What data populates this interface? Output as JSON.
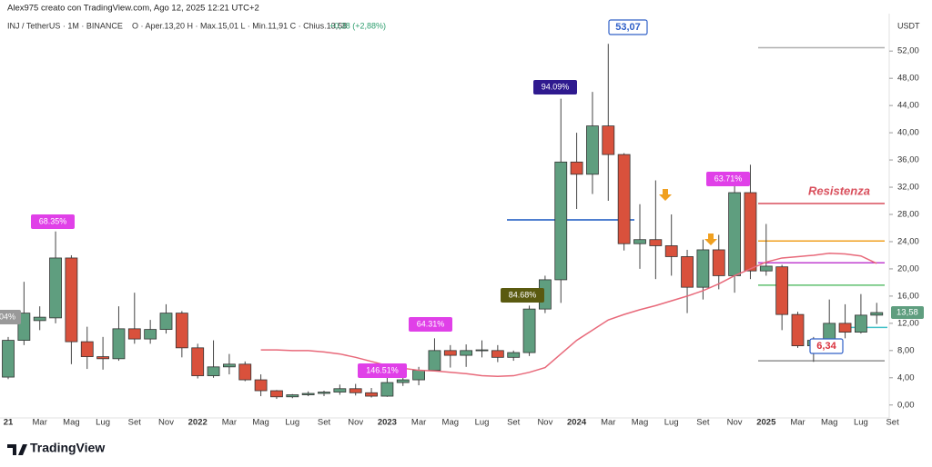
{
  "header": {
    "author": "Alex975 creato con TradingView.com, Ago 12, 2025 12:21 UTC+2",
    "symbol": "INJ / TetherUS · 1M · BINANCE",
    "ohlc_text": "O · Aper.13,20  H · Max.15,01  L · Min.11,91  C · Chius.13,58",
    "change": "+0,38 (+2,88%)"
  },
  "footer": {
    "brand": "TradingView"
  },
  "chart_data": {
    "type": "candlestick",
    "y_unit": "USDT",
    "up_color": "#5f9e7f",
    "down_color": "#d9513c",
    "grid": false,
    "categories": [
      "21",
      null,
      "Mar",
      null,
      "Mag",
      null,
      "Lug",
      null,
      "Set",
      null,
      "Nov",
      null,
      "2022",
      null,
      "Mar",
      null,
      "Mag",
      null,
      "Lug",
      null,
      "Set",
      null,
      "Nov",
      null,
      "2023",
      null,
      "Mar",
      null,
      "Mag",
      null,
      "Lug",
      null,
      "Set",
      null,
      "Nov",
      null,
      "2024",
      null,
      "Mar",
      null,
      "Mag",
      null,
      "Lug",
      null,
      "Set",
      null,
      "Nov",
      null,
      "2025",
      null,
      "Mar",
      null,
      "Mag",
      null,
      "Lug",
      null,
      "Set"
    ],
    "open": [
      4.1,
      9.5,
      12.4,
      12.8,
      21.6,
      9.3,
      7.1,
      6.8,
      11.2,
      9.7,
      11.1,
      13.5,
      8.4,
      4.3,
      5.6,
      6.0,
      3.7,
      2.1,
      1.2,
      1.5,
      1.7,
      1.9,
      2.4,
      1.8,
      1.3,
      3.3,
      3.7,
      5.1,
      8.0,
      7.3,
      8.0,
      8.0,
      7.0,
      7.7,
      14.1,
      18.4,
      35.7,
      33.9,
      41.0,
      36.8,
      23.7,
      24.3,
      23.4,
      21.8,
      17.3,
      22.8,
      19.0,
      31.2,
      19.7,
      20.3,
      13.3,
      8.7,
      9.5,
      12.0,
      10.7,
      13.2,
      null
    ],
    "high": [
      10.0,
      18.1,
      14.5,
      25.5,
      22.0,
      11.5,
      10.0,
      14.5,
      16.5,
      12.5,
      14.8,
      13.8,
      9.0,
      9.5,
      7.5,
      6.4,
      4.5,
      2.2,
      1.6,
      2.0,
      2.1,
      3.0,
      3.1,
      2.5,
      4.0,
      4.3,
      5.6,
      9.8,
      8.8,
      8.9,
      9.5,
      8.8,
      8.0,
      14.6,
      19.0,
      45.0,
      40.0,
      46.0,
      53.07,
      37.0,
      29.5,
      33.0,
      28.0,
      22.8,
      24.3,
      25.0,
      33.3,
      35.3,
      26.6,
      20.6,
      13.7,
      10.0,
      15.5,
      14.8,
      16.3,
      15.01,
      null
    ],
    "low": [
      3.8,
      8.8,
      11.0,
      12.0,
      6.0,
      5.3,
      5.2,
      6.5,
      9.0,
      9.0,
      10.5,
      7.0,
      3.9,
      4.0,
      4.5,
      3.5,
      1.3,
      0.9,
      1.0,
      1.3,
      1.3,
      1.5,
      1.4,
      1.1,
      1.2,
      2.8,
      2.9,
      5.0,
      5.5,
      5.6,
      7.0,
      6.3,
      6.5,
      7.2,
      13.5,
      15.0,
      28.8,
      31.0,
      30.0,
      22.7,
      20.0,
      18.5,
      19.0,
      13.5,
      15.5,
      17.0,
      16.5,
      18.5,
      19.0,
      11.0,
      8.4,
      6.34,
      8.7,
      9.8,
      10.5,
      11.91,
      null
    ],
    "close": [
      9.5,
      13.5,
      12.9,
      21.6,
      9.3,
      7.1,
      6.8,
      11.2,
      9.7,
      11.1,
      13.5,
      8.4,
      4.3,
      5.6,
      6.0,
      3.7,
      2.1,
      1.2,
      1.5,
      1.7,
      1.9,
      2.4,
      1.8,
      1.3,
      3.3,
      3.7,
      5.1,
      8.0,
      7.3,
      8.0,
      8.1,
      7.0,
      7.7,
      14.1,
      18.4,
      35.7,
      33.9,
      41.0,
      36.8,
      23.7,
      24.3,
      23.4,
      21.8,
      17.3,
      22.8,
      19.0,
      31.2,
      19.7,
      20.4,
      13.3,
      8.7,
      9.5,
      12.0,
      10.7,
      13.2,
      13.58,
      null
    ],
    "last_price_label": "13,58",
    "moving_average": {
      "color": "#e8697a",
      "values": [
        null,
        null,
        null,
        null,
        null,
        null,
        null,
        null,
        null,
        null,
        null,
        null,
        null,
        null,
        null,
        null,
        8.1,
        8.1,
        8.0,
        8.0,
        7.8,
        7.5,
        7.0,
        6.4,
        5.8,
        5.4,
        5.1,
        5.0,
        4.8,
        4.6,
        4.3,
        4.2,
        4.3,
        4.8,
        5.5,
        7.5,
        9.5,
        11.0,
        12.5,
        13.3,
        14.0,
        14.6,
        15.3,
        16.0,
        16.8,
        17.8,
        19.0,
        20.0,
        21.0,
        21.6,
        21.8,
        22.0,
        22.3,
        22.2,
        21.9,
        20.8,
        null
      ]
    },
    "levels": [
      {
        "value": 27.2,
        "color": "#4f7fd0"
      },
      {
        "value": 52.5,
        "color": "#b0b0b0"
      },
      {
        "value": 29.6,
        "color": "#d94f5c"
      },
      {
        "value": 24.1,
        "color": "#f0a020"
      },
      {
        "value": 20.9,
        "color": "#c040d0"
      },
      {
        "value": 17.6,
        "color": "#5fbf6f"
      },
      {
        "value": 11.4,
        "color": "#40c0c8"
      },
      {
        "value": 6.5,
        "color": "#909090"
      }
    ],
    "resistance_label": "Resistenza",
    "annotations": [
      "04%",
      "68.35%",
      "146.51%",
      "64.31%",
      "84.68%",
      "94.09%",
      "63.71%",
      "53,07",
      "6,34"
    ],
    "ylim": [
      -1.9,
      57.5
    ],
    "yticks": [
      {
        "value": 0,
        "label": "0,00"
      },
      {
        "value": 4,
        "label": "4,00"
      },
      {
        "value": 8,
        "label": "8,00"
      },
      {
        "value": 12,
        "label": "12,00"
      },
      {
        "value": 16,
        "label": "16,00"
      },
      {
        "value": 20,
        "label": "20,00"
      },
      {
        "value": 24,
        "label": "24,00"
      },
      {
        "value": 28,
        "label": "28,00"
      },
      {
        "value": 32,
        "label": "32,00"
      },
      {
        "value": 36,
        "label": "36,00"
      },
      {
        "value": 40,
        "label": "40,00"
      },
      {
        "value": 44,
        "label": "44,00"
      },
      {
        "value": 48,
        "label": "48,00"
      },
      {
        "value": 52,
        "label": "52,00"
      }
    ]
  }
}
